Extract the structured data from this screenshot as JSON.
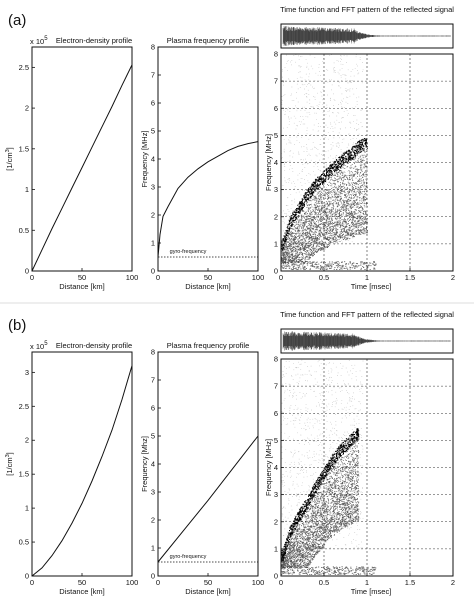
{
  "panels": [
    {
      "label": "(a)",
      "density": {
        "exponent_label": "x 10",
        "exponent_power": "5",
        "title": "Electron-density profile",
        "ylabel": "[1/cm",
        "ylabel_sup": "3",
        "ylabel_end": "]",
        "xlabel": "Distance [km]",
        "xticks": [
          "0",
          "50",
          "100"
        ],
        "yticks": [
          "0",
          "0.5",
          "1",
          "1.5",
          "2",
          "2.5"
        ]
      },
      "plasma": {
        "title": "Plasma frequency profile",
        "ylabel": "Frequency [MHz]",
        "xlabel": "Distance [km]",
        "xticks": [
          "0",
          "50",
          "100"
        ],
        "yticks": [
          "0",
          "1",
          "2",
          "3",
          "4",
          "5",
          "6",
          "7",
          "8"
        ],
        "gyro_label": "gyro-frequency"
      },
      "spectrogram": {
        "title": "Time function and FFT pattern of the reflected signal",
        "ylabel": "Frequency [MHz]",
        "xlabel": "Time  [msec]",
        "xticks": [
          "0",
          "0.5",
          "1",
          "1.5",
          "2"
        ],
        "yticks": [
          "0",
          "1",
          "2",
          "3",
          "4",
          "5",
          "6",
          "7",
          "8"
        ]
      }
    },
    {
      "label": "(b)",
      "density": {
        "exponent_label": "x 10",
        "exponent_power": "5",
        "title": "Electron-density profile",
        "ylabel": "[1/cm",
        "ylabel_sup": "3",
        "ylabel_end": "]",
        "xlabel": "Distance [km]",
        "xticks": [
          "0",
          "50",
          "100"
        ],
        "yticks": [
          "0",
          "0.5",
          "1",
          "1.5",
          "2",
          "2.5",
          "3"
        ]
      },
      "plasma": {
        "title": "Plasma frequency profile",
        "ylabel": "Frequency [Mhz]",
        "xlabel": "Distance [km]",
        "xticks": [
          "0",
          "50",
          "100"
        ],
        "yticks": [
          "0",
          "1",
          "2",
          "3",
          "4",
          "5",
          "6",
          "7",
          "8"
        ],
        "gyro_label": "gyro-frequency"
      },
      "spectrogram": {
        "title": "Time function and FFT pattern of the reflected signal",
        "ylabel": "Frequency [MHz]",
        "xlabel": "Time  [msec]",
        "xticks": [
          "0",
          "0.5",
          "1",
          "1.5",
          "2"
        ],
        "yticks": [
          "0",
          "1",
          "2",
          "3",
          "4",
          "5",
          "6",
          "7",
          "8"
        ]
      }
    }
  ],
  "chart_data": [
    {
      "panel": "(a)",
      "type": "line",
      "title": "Electron-density profile",
      "xlabel": "Distance [km]",
      "ylabel": "[1/cm3]",
      "y_multiplier": "x 10^5",
      "xlim": [
        0,
        100
      ],
      "ylim": [
        0,
        2.75
      ],
      "x": [
        0,
        10,
        20,
        30,
        40,
        50,
        60,
        70,
        80,
        90,
        100
      ],
      "series": [
        {
          "values": [
            0.0,
            0.26,
            0.52,
            0.77,
            1.02,
            1.27,
            1.52,
            1.77,
            2.02,
            2.28,
            2.53
          ]
        }
      ]
    },
    {
      "panel": "(a)",
      "type": "line",
      "title": "Plasma frequency profile",
      "xlabel": "Distance [km]",
      "ylabel": "Frequency [MHz]",
      "xlim": [
        0,
        100
      ],
      "ylim": [
        0,
        8
      ],
      "x": [
        0,
        2,
        5,
        10,
        20,
        30,
        40,
        50,
        60,
        70,
        80,
        90,
        100
      ],
      "series": [
        {
          "values": [
            0.5,
            1.3,
            1.95,
            2.3,
            2.95,
            3.35,
            3.65,
            3.9,
            4.1,
            4.3,
            4.45,
            4.55,
            4.62
          ]
        }
      ],
      "reference_lines": [
        {
          "label": "gyro-frequency",
          "y": 0.5
        }
      ]
    },
    {
      "panel": "(b)",
      "type": "line",
      "title": "Electron-density profile",
      "xlabel": "Distance [km]",
      "ylabel": "[1/cm3]",
      "y_multiplier": "x 10^5",
      "xlim": [
        0,
        100
      ],
      "ylim": [
        0,
        3.3
      ],
      "x": [
        0,
        10,
        20,
        30,
        40,
        50,
        60,
        70,
        80,
        90,
        100
      ],
      "series": [
        {
          "values": [
            0.0,
            0.12,
            0.3,
            0.52,
            0.78,
            1.07,
            1.4,
            1.76,
            2.15,
            2.6,
            3.1
          ]
        }
      ]
    },
    {
      "panel": "(b)",
      "type": "line",
      "title": "Plasma frequency profile",
      "xlabel": "Distance [km]",
      "ylabel": "Frequency [Mhz]",
      "xlim": [
        0,
        100
      ],
      "ylim": [
        0,
        8
      ],
      "x": [
        0,
        25,
        50,
        75,
        100
      ],
      "series": [
        {
          "values": [
            0.5,
            1.6,
            2.7,
            3.85,
            5.0
          ]
        }
      ],
      "reference_lines": [
        {
          "label": "gyro-frequency",
          "y": 0.5
        }
      ]
    },
    {
      "panel": "(a)",
      "type": "heatmap",
      "title": "Time function and FFT pattern of the reflected signal",
      "xlabel": "Time  [msec]",
      "ylabel": "Frequency [MHz]",
      "xlim": [
        0,
        2
      ],
      "ylim": [
        0,
        8
      ],
      "grid": true,
      "ridge": {
        "time_msec": [
          0.02,
          0.1,
          0.2,
          0.3,
          0.4,
          0.5,
          0.6,
          0.7,
          0.8,
          0.9,
          1.0
        ],
        "freq_mhz": [
          1.2,
          2.0,
          2.5,
          3.0,
          3.4,
          3.7,
          4.0,
          4.3,
          4.5,
          4.8,
          4.95
        ]
      }
    },
    {
      "panel": "(b)",
      "type": "heatmap",
      "title": "Time function and FFT pattern of the reflected signal",
      "xlabel": "Time  [msec]",
      "ylabel": "Frequency [MHz]",
      "xlim": [
        0,
        2
      ],
      "ylim": [
        0,
        8
      ],
      "grid": true,
      "ridge": {
        "time_msec": [
          0.02,
          0.1,
          0.2,
          0.3,
          0.4,
          0.5,
          0.6,
          0.7,
          0.8,
          0.9
        ],
        "freq_mhz": [
          1.0,
          1.8,
          2.4,
          2.9,
          3.5,
          4.0,
          4.5,
          4.9,
          5.2,
          5.5
        ]
      }
    }
  ]
}
